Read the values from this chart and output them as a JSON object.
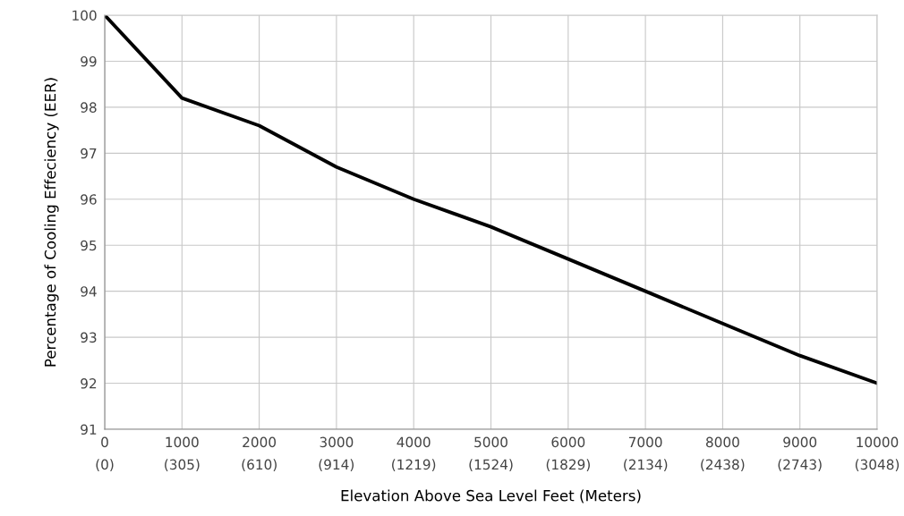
{
  "chart_data": {
    "type": "line",
    "xlabel": "Elevation Above Sea Level Feet (Meters)",
    "ylabel": "Percentage of Cooling Effeciency (EER)",
    "x": [
      0,
      1000,
      2000,
      3000,
      4000,
      5000,
      6000,
      7000,
      8000,
      9000,
      10000
    ],
    "series": [
      {
        "color": "#000000",
        "values": [
          100,
          98.2,
          97.6,
          96.7,
          96.0,
          95.4,
          94.7,
          94.0,
          93.3,
          92.6,
          92.0
        ]
      }
    ],
    "xlim": [
      0,
      10000
    ],
    "xticks": [
      0,
      1000,
      2000,
      3000,
      4000,
      5000,
      6000,
      7000,
      8000,
      9000,
      10000
    ],
    "x2lim": [
      0,
      3048
    ],
    "x2ticks": [
      {
        "value": 0,
        "label": "(0)"
      },
      {
        "value": 305,
        "label": "(305)"
      },
      {
        "value": 610,
        "label": "(610)"
      },
      {
        "value": 914,
        "label": "(914)"
      },
      {
        "value": 1219,
        "label": "(1219)"
      },
      {
        "value": 1524,
        "label": "(1524)"
      },
      {
        "value": 1829,
        "label": "(1829)"
      },
      {
        "value": 2134,
        "label": "(2134)"
      },
      {
        "value": 2438,
        "label": "(2438)"
      },
      {
        "value": 2743,
        "label": "(2743)"
      },
      {
        "value": 3048,
        "label": "(3048)"
      }
    ],
    "ylim": [
      91,
      100
    ],
    "yticks": [
      91,
      92,
      93,
      94,
      95,
      96,
      97,
      98,
      99,
      100
    ],
    "grid": true,
    "marker": "none",
    "line_style": "solid"
  }
}
